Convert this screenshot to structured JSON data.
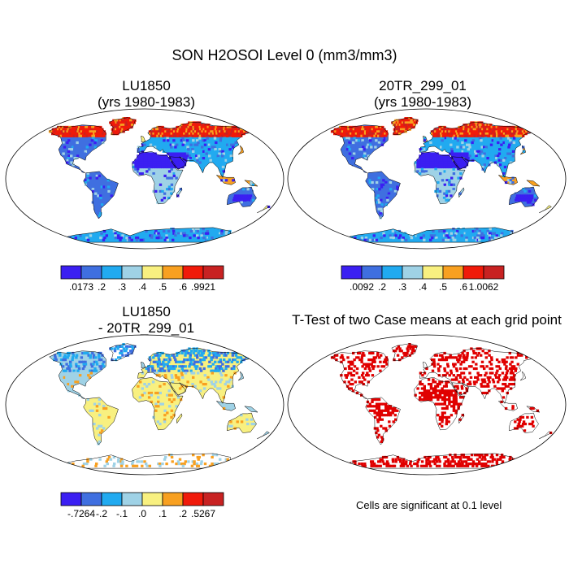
{
  "title": "SON H2OSOI Level 0 (mm3/mm3)",
  "panels": [
    {
      "id": "lu1850",
      "title_line1": "LU1850",
      "title_line2": "(yrs 1980-1983)"
    },
    {
      "id": "20tr",
      "title_line1": "20TR_299_01",
      "title_line2": "(yrs 1980-1983)"
    },
    {
      "id": "diff",
      "title_line1": "LU1850",
      "title_line2": "- 20TR_299_01"
    },
    {
      "id": "ttest",
      "title_line1": "T-Test of two Case means at each grid point",
      "title_line2": ""
    }
  ],
  "colorbars": [
    {
      "panel": "lu1850",
      "colors": [
        "#3b1ff2",
        "#3f6fe0",
        "#21aaf0",
        "#9fd2e6",
        "#f8f080",
        "#f8a020",
        "#f01a0a",
        "#c82222"
      ],
      "labels": [
        ".0173",
        ".2",
        ".3",
        ".4",
        ".5",
        ".6",
        ".9921"
      ]
    },
    {
      "panel": "20tr",
      "colors": [
        "#3b1ff2",
        "#3f6fe0",
        "#21aaf0",
        "#9fd2e6",
        "#f8f080",
        "#f8a020",
        "#f01a0a",
        "#c82222"
      ],
      "labels": [
        ".0092",
        ".2",
        ".3",
        ".4",
        ".5",
        ".6",
        "1.0062"
      ]
    },
    {
      "panel": "diff",
      "colors": [
        "#3b1ff2",
        "#3f6fe0",
        "#21aaf0",
        "#9fd2e6",
        "#f8f080",
        "#f8a020",
        "#f01a0a",
        "#c82222"
      ],
      "labels": [
        "-.7264",
        "-.2",
        "-.1",
        ".0",
        ".1",
        ".2",
        ".5267"
      ]
    }
  ],
  "significance_note": "Cells are significant at 0.1 level",
  "colors": {
    "map_outline": "#000000",
    "significant": "#e00000",
    "ocean": "#ffffff"
  }
}
